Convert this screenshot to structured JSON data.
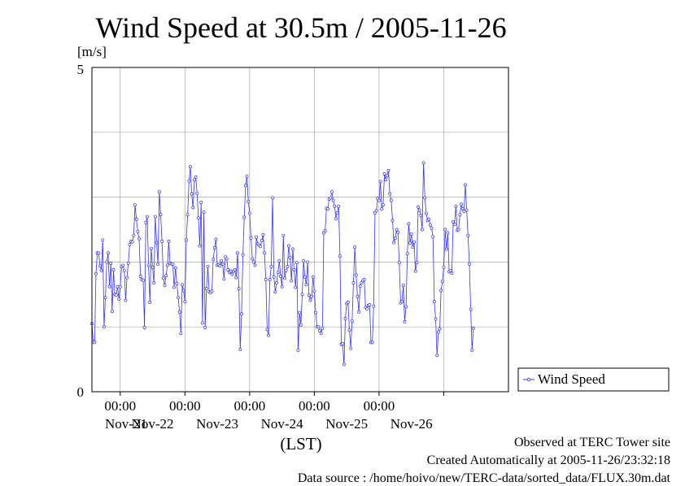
{
  "chart_data": {
    "type": "line",
    "title": "Wind Speed at 30.5m / 2005-11-26",
    "ylabel": "[m/s]",
    "xlabel": "(LST)",
    "ylim": [
      0,
      5
    ],
    "y_ticks": [
      "0",
      "5"
    ],
    "x_tick_times": [
      "00:00",
      "00:00",
      "00:00",
      "00:00",
      "00:00"
    ],
    "x_day_labels": [
      "Nov-21",
      "Nov-22",
      "Nov-23",
      "Nov-24",
      "Nov-25",
      "Nov-26"
    ],
    "grid": true,
    "legend_position": "right",
    "color": "#3333ff",
    "x_start": "2005-11-20 13:30",
    "x_end": "2005-11-27 00:00",
    "sample_interval_minutes": 30,
    "series": [
      {
        "name": "Wind Speed",
        "values": [
          1.05,
          0.77,
          0.76,
          1.82,
          2.14,
          2.14,
          1.94,
          1.87,
          2.34,
          1.0,
          1.45,
          2.0,
          2.14,
          1.62,
          1.98,
          1.24,
          1.88,
          1.5,
          1.49,
          1.62,
          1.43,
          1.62,
          1.93,
          1.95,
          1.87,
          1.41,
          1.76,
          1.98,
          2.27,
          2.32,
          2.31,
          2.41,
          2.88,
          2.66,
          2.47,
          2.36,
          1.78,
          1.73,
          1.72,
          0.99,
          2.61,
          2.7,
          1.95,
          1.38,
          2.21,
          1.92,
          1.68,
          2.7,
          2.3,
          1.97,
          3.08,
          2.73,
          2.32,
          1.75,
          1.64,
          1.79,
          1.95,
          2.32,
          1.98,
          1.97,
          1.97,
          1.61,
          1.91,
          1.67,
          1.45,
          1.23,
          0.9,
          1.65,
          1.56,
          1.39,
          2.34,
          2.73,
          3.25,
          3.47,
          3.05,
          2.84,
          3.27,
          3.31,
          3.06,
          2.68,
          2.25,
          2.92,
          1.06,
          2.77,
          0.99,
          1.59,
          1.93,
          1.54,
          1.53,
          1.55,
          2.04,
          2.22,
          2.35,
          1.95,
          1.96,
          1.94,
          2.02,
          1.97,
          1.74,
          2.08,
          2.05,
          1.88,
          1.84,
          1.86,
          1.81,
          1.86,
          1.88,
          1.76,
          2.14,
          1.59,
          0.65,
          1.2,
          2.11,
          2.69,
          3.18,
          3.32,
          2.93,
          2.75,
          2.37,
          2.05,
          2.0,
          1.95,
          2.38,
          2.28,
          2.26,
          2.24,
          2.33,
          2.42,
          2.14,
          1.73,
          0.96,
          0.87,
          1.73,
          1.93,
          2.99,
          1.77,
          1.54,
          1.68,
          1.84,
          2.02,
          1.78,
          1.62,
          2.41,
          1.75,
          1.87,
          1.93,
          2.25,
          2.07,
          1.71,
          2.2,
          1.88,
          1.61,
          1.99,
          0.64,
          1.22,
          1.03,
          1.5,
          2.02,
          1.77,
          1.65,
          2.0,
          1.49,
          1.41,
          1.47,
          1.77,
          1.55,
          1.22,
          1.0,
          1.0,
          0.94,
          0.9,
          0.98,
          2.45,
          2.48,
          2.83,
          2.82,
          2.97,
          2.99,
          3.08,
          2.95,
          2.86,
          2.67,
          2.76,
          2.86,
          2.09,
          0.73,
          0.74,
          0.42,
          1.13,
          1.36,
          1.38,
          0.95,
          0.67,
          1.09,
          1.68,
          2.23,
          1.8,
          1.47,
          1.23,
          1.63,
          1.68,
          1.71,
          1.73,
          1.3,
          1.28,
          1.33,
          1.34,
          0.76,
          0.76,
          1.32,
          2.76,
          2.79,
          2.98,
          2.95,
          3.24,
          2.82,
          2.88,
          3.36,
          3.27,
          3.33,
          3.41,
          3.05,
          2.95,
          2.64,
          2.3,
          2.37,
          2.5,
          2.46,
          1.99,
          1.37,
          1.39,
          1.64,
          1.08,
          1.31,
          2.13,
          2.59,
          2.29,
          2.43,
          2.23,
          2.31,
          1.86,
          1.99,
          2.85,
          2.8,
          2.72,
          2.5,
          3.53,
          2.99,
          2.75,
          2.64,
          2.66,
          2.57,
          2.52,
          2.39,
          1.39,
          1.12,
          0.56,
          0.92,
          0.97,
          1.56,
          1.7,
          1.92,
          2.5,
          2.2,
          2.45,
          1.85,
          1.87,
          1.83,
          2.62,
          2.58,
          2.86,
          2.49,
          2.5,
          2.73,
          2.89,
          2.82,
          2.78,
          3.19,
          2.8,
          2.41,
          1.97,
          1.27,
          0.64,
          0.98
        ]
      }
    ]
  },
  "footer": {
    "observed": "Observed at TERC Tower site",
    "created": "Created Automatically at 2005-11-26/23:32:18",
    "source": "Data source : /home/hoivo/new/TERC-data/sorted_data/FLUX.30m.dat"
  }
}
